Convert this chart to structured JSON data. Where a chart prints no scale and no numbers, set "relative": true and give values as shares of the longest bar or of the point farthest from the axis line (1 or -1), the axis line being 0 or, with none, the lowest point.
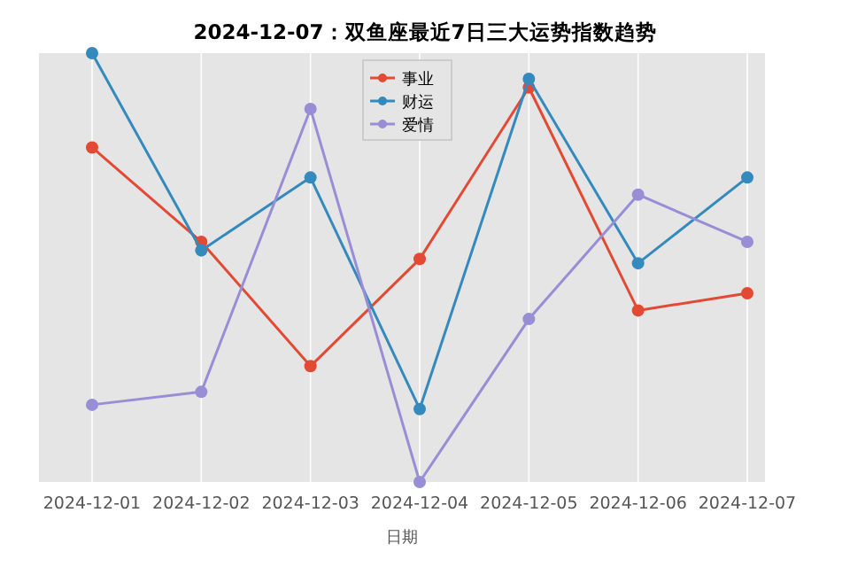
{
  "chart_data": {
    "type": "line",
    "title": "2024-12-07：双鱼座最近7日三大运势指数趋势",
    "xlabel": "日期",
    "relative": true,
    "categories": [
      "2024-12-01",
      "2024-12-02",
      "2024-12-03",
      "2024-12-04",
      "2024-12-05",
      "2024-12-06",
      "2024-12-07"
    ],
    "series": [
      {
        "name": "事业",
        "color": "#e24a33",
        "values": [
          0.78,
          0.56,
          0.27,
          0.52,
          0.92,
          0.4,
          0.44
        ]
      },
      {
        "name": "财运",
        "color": "#348abd",
        "values": [
          1.0,
          0.54,
          0.71,
          0.17,
          0.94,
          0.51,
          0.71
        ]
      },
      {
        "name": "爱情",
        "color": "#988ed5",
        "values": [
          0.18,
          0.21,
          0.87,
          0,
          0.38,
          0.67,
          0.56
        ]
      }
    ],
    "grid": "x",
    "legend": "top",
    "marker": "circle",
    "line_style": "solid"
  }
}
